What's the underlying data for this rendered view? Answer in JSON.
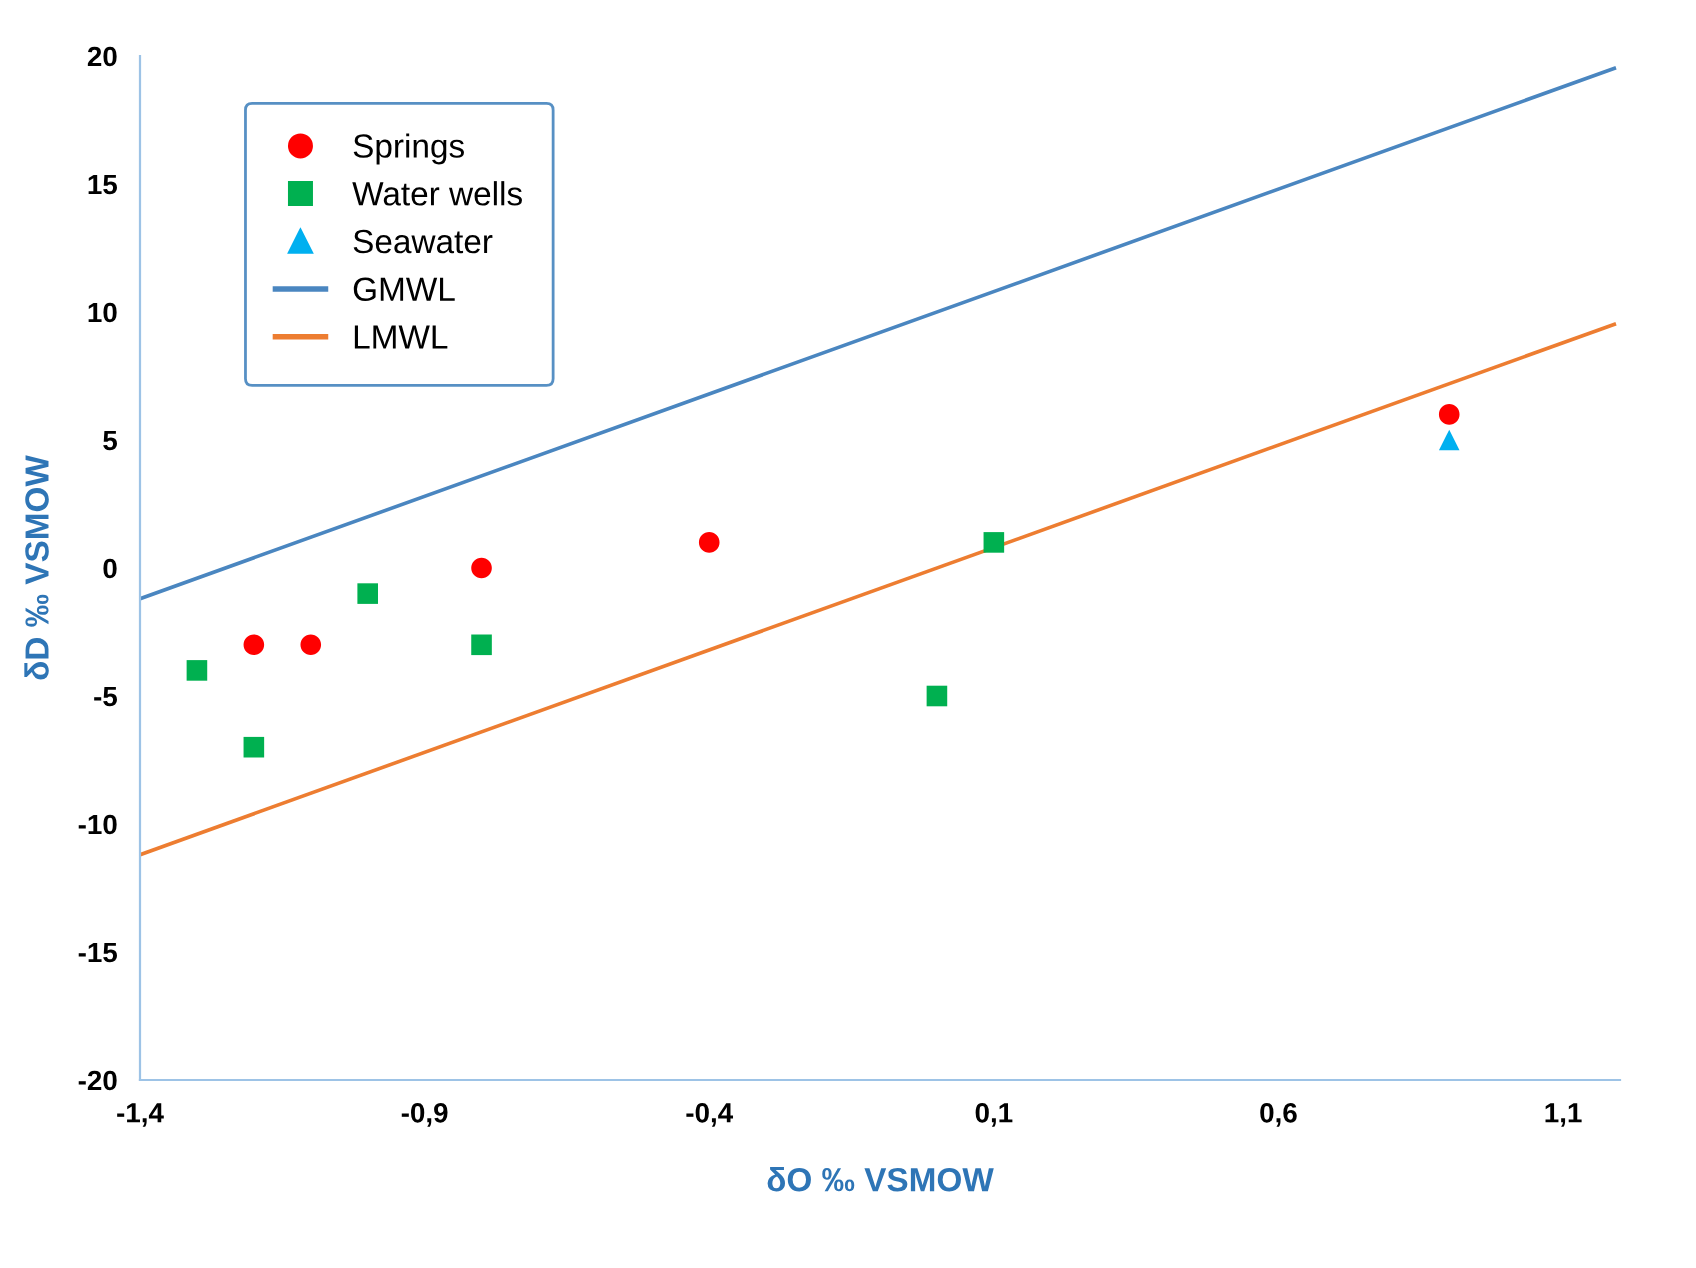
{
  "chart_data": {
    "type": "scatter",
    "xlabel": "δO ‰ VSMOW",
    "ylabel": "δD ‰ VSMOW",
    "xlim": [
      -1.4,
      1.2
    ],
    "ylim": [
      -20,
      20
    ],
    "xticks": [
      {
        "value": -1.4,
        "label": "-1,4"
      },
      {
        "value": -0.9,
        "label": "-0,9"
      },
      {
        "value": -0.4,
        "label": "-0,4"
      },
      {
        "value": 0.1,
        "label": "0,1"
      },
      {
        "value": 0.6,
        "label": "0,6"
      },
      {
        "value": 1.1,
        "label": "1,1"
      }
    ],
    "yticks": [
      -20,
      -15,
      -10,
      -5,
      0,
      5,
      10,
      15,
      20
    ],
    "grid": false,
    "legend": "top left",
    "series": [
      {
        "name": "Springs",
        "marker": "circle",
        "color": "#ff0000",
        "x": [
          -1.2,
          -1.1,
          -0.8,
          -0.4,
          0.9
        ],
        "values": [
          -3,
          -3,
          0,
          1,
          6
        ]
      },
      {
        "name": "Water wells",
        "marker": "square",
        "color": "#00b050",
        "x": [
          -1.3,
          -1.2,
          -1.0,
          -0.8,
          0.0,
          0.1
        ],
        "values": [
          -4,
          -7,
          -1,
          -3,
          -5,
          1
        ]
      },
      {
        "name": "Seawater",
        "marker": "triangle",
        "color": "#00b0f0",
        "x": [
          0.9
        ],
        "values": [
          5
        ]
      },
      {
        "name": "GMWL",
        "type": "line",
        "marker": "none",
        "line_style": "solid",
        "color": "#4a86c0",
        "x": [
          -1.4,
          1.19
        ],
        "values": [
          -1.2,
          19.52
        ]
      },
      {
        "name": "LMWL",
        "type": "line",
        "marker": "none",
        "line_style": "solid",
        "color": "#ed7d31",
        "x": [
          -1.4,
          1.19
        ],
        "values": [
          -11.2,
          9.52
        ]
      }
    ]
  }
}
